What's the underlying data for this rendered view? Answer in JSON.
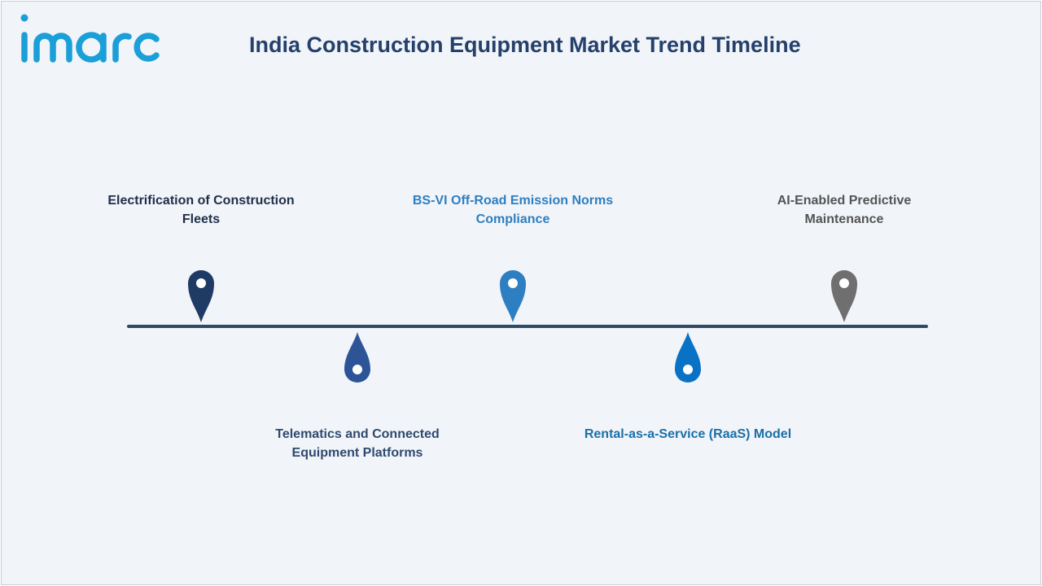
{
  "brand": {
    "logo_text": "imarc",
    "color": "#1a9fd8"
  },
  "title": "India Construction Equipment Market Trend Timeline",
  "timeline": {
    "line_color": "#2e4a66",
    "items": [
      {
        "label": "Electrification of Construction Fleets",
        "color": "#1f3a64",
        "label_color": "#1f2f48",
        "position": "above",
        "icon": "map-pin-icon"
      },
      {
        "label": "Telematics and Connected Equipment Platforms",
        "color": "#2e5498",
        "label_color": "#2f4a6e",
        "position": "below",
        "icon": "drop-pin-icon"
      },
      {
        "label": "BS-VI Off-Road Emission Norms Compliance",
        "color": "#2e7fc1",
        "label_color": "#2e7fc1",
        "position": "above",
        "icon": "map-pin-icon"
      },
      {
        "label": "Rental-as-a-Service (RaaS) Model",
        "color": "#0a72c4",
        "label_color": "#1b6fa8",
        "position": "below",
        "icon": "drop-pin-icon"
      },
      {
        "label": "AI-Enabled Predictive Maintenance",
        "color": "#6f6f6f",
        "label_color": "#545454",
        "position": "above",
        "icon": "map-pin-icon"
      }
    ]
  }
}
